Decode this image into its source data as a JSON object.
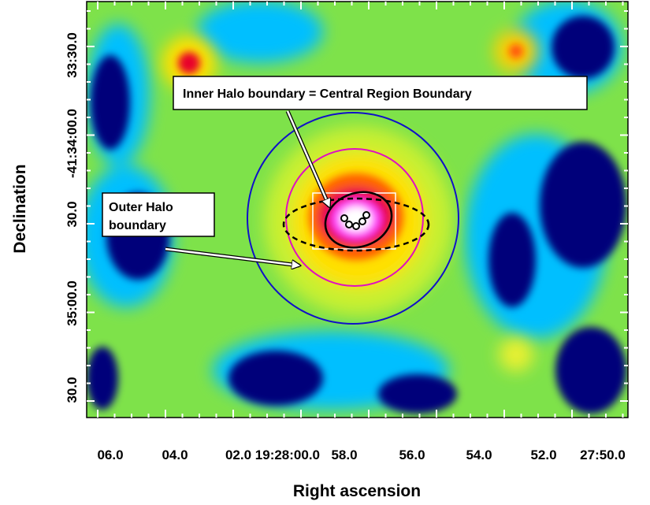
{
  "figure": {
    "x_label": "Right ascension",
    "y_label": "Declination",
    "x_tick_labels": [
      "06.0",
      "04.0",
      "02.0 19:28:00.0",
      "58.0",
      "56.0",
      "54.0",
      "52.0",
      "27:50.0"
    ],
    "y_tick_labels": [
      "33:30.0",
      "-41:34:00.0",
      "30.0",
      "35:00.0",
      "30.0"
    ],
    "annotations": [
      "Inner Halo boundary = Central Region Boundary",
      "Outer Halo",
      "boundary"
    ]
  }
}
